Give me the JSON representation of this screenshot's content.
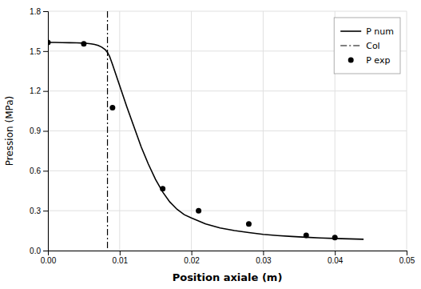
{
  "chart_data": {
    "type": "line",
    "xlabel": "Position axiale (m)",
    "ylabel": "Pression (MPa)",
    "xlim": [
      0.0,
      0.05
    ],
    "ylim": [
      0.0,
      1.8
    ],
    "xticks": [
      {
        "value": 0.0,
        "label": "0.00"
      },
      0.01,
      0.02,
      0.03,
      0.04,
      0.05
    ],
    "yticks": [
      {
        "value": 0.0,
        "label": "0.0"
      },
      0.3,
      0.6,
      0.9,
      1.2,
      1.5,
      1.8
    ],
    "grid": true,
    "legend": "upper right",
    "series": [
      {
        "name": "P num",
        "type": "line",
        "color": "black",
        "line_style": "solid",
        "x": [
          0.0,
          0.001,
          0.002,
          0.003,
          0.004,
          0.005,
          0.0055,
          0.006,
          0.0065,
          0.007,
          0.0075,
          0.008,
          0.0083,
          0.0086,
          0.009,
          0.0095,
          0.01,
          0.011,
          0.012,
          0.013,
          0.014,
          0.015,
          0.016,
          0.017,
          0.018,
          0.019,
          0.02,
          0.022,
          0.024,
          0.026,
          0.028,
          0.03,
          0.032,
          0.034,
          0.036,
          0.038,
          0.04,
          0.042,
          0.044
        ],
        "values": [
          1.565,
          1.565,
          1.564,
          1.563,
          1.562,
          1.56,
          1.558,
          1.555,
          1.55,
          1.543,
          1.53,
          1.51,
          1.49,
          1.46,
          1.4,
          1.32,
          1.24,
          1.08,
          0.93,
          0.78,
          0.65,
          0.535,
          0.44,
          0.365,
          0.31,
          0.27,
          0.245,
          0.2,
          0.17,
          0.15,
          0.135,
          0.122,
          0.113,
          0.106,
          0.1,
          0.095,
          0.091,
          0.088,
          0.085
        ]
      },
      {
        "name": "Col",
        "type": "vline",
        "color": "black",
        "line_style": "dashdot",
        "x": [
          0.0083
        ]
      },
      {
        "name": "P exp",
        "type": "scatter",
        "color": "black",
        "marker": "circle",
        "x": [
          0.0,
          0.005,
          0.009,
          0.016,
          0.021,
          0.028,
          0.036,
          0.04
        ],
        "values": [
          1.565,
          1.555,
          1.075,
          0.465,
          0.3,
          0.2,
          0.115,
          0.098
        ]
      }
    ]
  }
}
